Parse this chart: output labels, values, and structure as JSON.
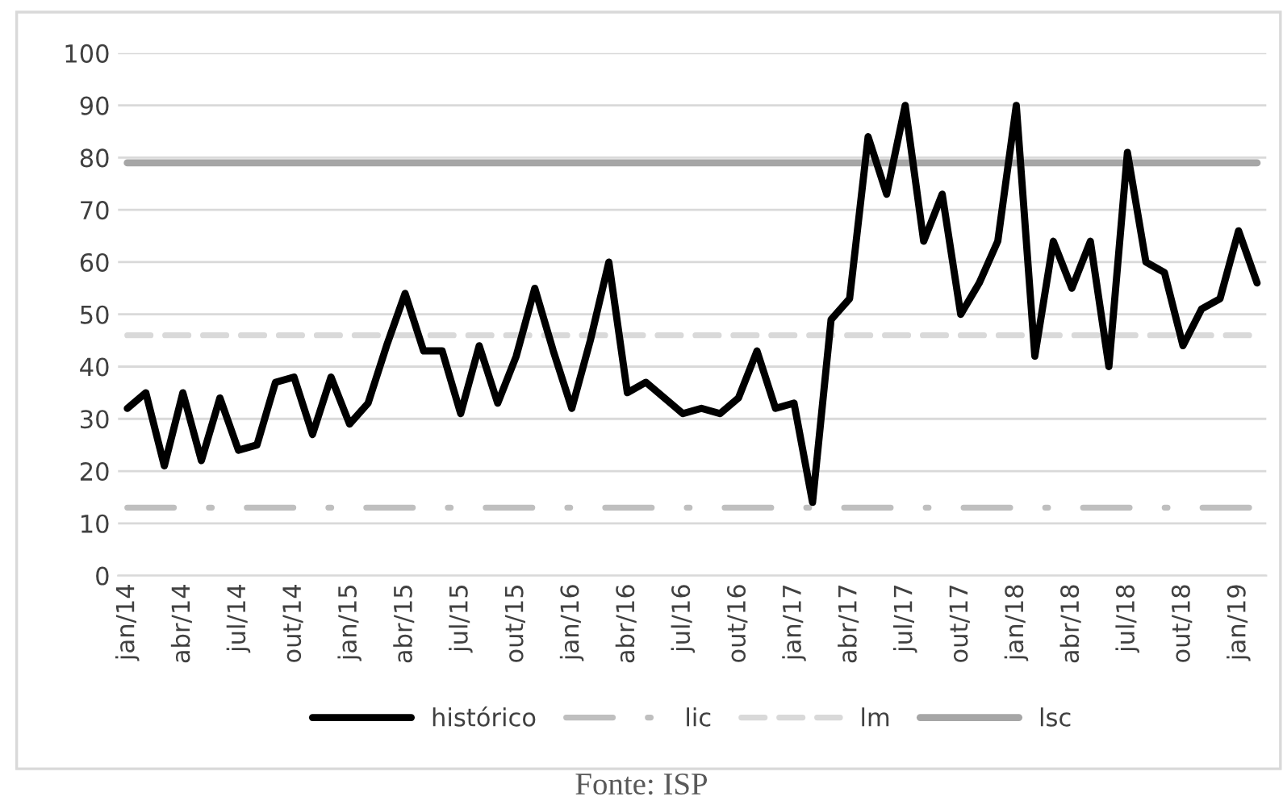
{
  "chart_data": {
    "type": "line",
    "categories": [
      "jan/14",
      null,
      null,
      "abr/14",
      null,
      null,
      "jul/14",
      null,
      null,
      "out/14",
      null,
      null,
      "jan/15",
      null,
      null,
      "abr/15",
      null,
      null,
      "jul/15",
      null,
      null,
      "out/15",
      null,
      null,
      "jan/16",
      null,
      null,
      "abr/16",
      null,
      null,
      "jul/16",
      null,
      null,
      "out/16",
      null,
      null,
      "jan/17",
      null,
      null,
      "abr/17",
      null,
      null,
      "jul/17",
      null,
      null,
      "out/17",
      null,
      null,
      "jan/18",
      null,
      null,
      "abr/18",
      null,
      null,
      "jul/18",
      null,
      null,
      "out/18",
      null,
      null,
      "jan/19",
      null
    ],
    "series": [
      {
        "name": "histórico",
        "color": "#000000",
        "line_style": "solid",
        "values": [
          32,
          35,
          21,
          35,
          22,
          34,
          24,
          25,
          37,
          38,
          27,
          38,
          29,
          33,
          44,
          54,
          43,
          43,
          31,
          44,
          33,
          42,
          55,
          43,
          32,
          45,
          60,
          35,
          37,
          34,
          31,
          32,
          31,
          34,
          43,
          32,
          33,
          14,
          49,
          53,
          84,
          73,
          90,
          64,
          73,
          50,
          56,
          64,
          90,
          42,
          64,
          55,
          64,
          40,
          81,
          60,
          58,
          44,
          51,
          53,
          66,
          56
        ]
      },
      {
        "name": "lic",
        "color": "#bfbfbf",
        "line_style": "dashdot",
        "values": [
          13,
          13,
          13,
          13,
          13,
          13,
          13,
          13,
          13,
          13,
          13,
          13,
          13,
          13,
          13,
          13,
          13,
          13,
          13,
          13,
          13,
          13,
          13,
          13,
          13,
          13,
          13,
          13,
          13,
          13,
          13,
          13,
          13,
          13,
          13,
          13,
          13,
          13,
          13,
          13,
          13,
          13,
          13,
          13,
          13,
          13,
          13,
          13,
          13,
          13,
          13,
          13,
          13,
          13,
          13,
          13,
          13,
          13,
          13,
          13,
          13,
          13
        ]
      },
      {
        "name": "lm",
        "color": "#d9d9d9",
        "line_style": "dashed",
        "values": [
          46,
          46,
          46,
          46,
          46,
          46,
          46,
          46,
          46,
          46,
          46,
          46,
          46,
          46,
          46,
          46,
          46,
          46,
          46,
          46,
          46,
          46,
          46,
          46,
          46,
          46,
          46,
          46,
          46,
          46,
          46,
          46,
          46,
          46,
          46,
          46,
          46,
          46,
          46,
          46,
          46,
          46,
          46,
          46,
          46,
          46,
          46,
          46,
          46,
          46,
          46,
          46,
          46,
          46,
          46,
          46,
          46,
          46,
          46,
          46,
          46,
          46
        ]
      },
      {
        "name": "lsc",
        "color": "#a6a6a6",
        "line_style": "solid",
        "values": [
          79,
          79,
          79,
          79,
          79,
          79,
          79,
          79,
          79,
          79,
          79,
          79,
          79,
          79,
          79,
          79,
          79,
          79,
          79,
          79,
          79,
          79,
          79,
          79,
          79,
          79,
          79,
          79,
          79,
          79,
          79,
          79,
          79,
          79,
          79,
          79,
          79,
          79,
          79,
          79,
          79,
          79,
          79,
          79,
          79,
          79,
          79,
          79,
          79,
          79,
          79,
          79,
          79,
          79,
          79,
          79,
          79,
          79,
          79,
          79,
          79,
          79
        ]
      }
    ],
    "ylim": [
      0,
      100
    ],
    "yticks": [
      0,
      10,
      20,
      30,
      40,
      50,
      60,
      70,
      80,
      90,
      100
    ],
    "grid": "y",
    "legend": "bottom",
    "marker": "none",
    "annotations": [
      "Fonte: ISP"
    ]
  }
}
